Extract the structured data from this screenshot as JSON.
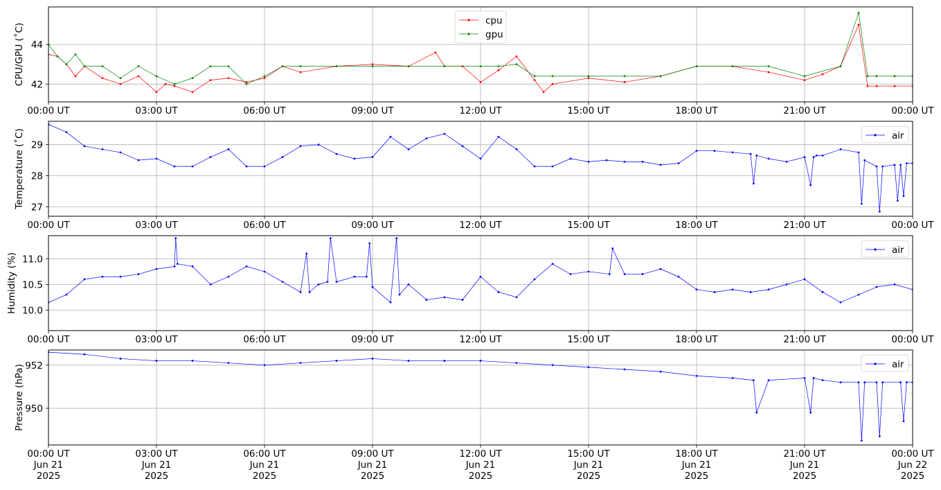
{
  "chart_data": [
    {
      "type": "line",
      "ylabel": "CPU/GPU (˚C)",
      "ylim": [
        41.1,
        45.9
      ],
      "yticks": [
        42,
        44
      ],
      "grid": true,
      "legend": "top-center",
      "x_domain": [
        "2025-06-21T00:00Z",
        "2025-06-22T00:00Z"
      ],
      "x_ticks": [
        "00:00 UT",
        "03:00 UT",
        "06:00 UT",
        "09:00 UT",
        "12:00 UT",
        "15:00 UT",
        "18:00 UT",
        "21:00 UT",
        "00:00 UT"
      ],
      "series": [
        {
          "name": "cpu",
          "color": "#ff0000",
          "x": [
            "2025-06-21T00:00Z",
            "2025-06-21T00:15Z",
            "2025-06-21T00:30Z",
            "2025-06-21T00:45Z",
            "2025-06-21T01:00Z",
            "2025-06-21T01:30Z",
            "2025-06-21T02:00Z",
            "2025-06-21T02:30Z",
            "2025-06-21T03:00Z",
            "2025-06-21T03:15Z",
            "2025-06-21T03:30Z",
            "2025-06-21T04:00Z",
            "2025-06-21T04:30Z",
            "2025-06-21T05:00Z",
            "2025-06-21T05:30Z",
            "2025-06-21T06:00Z",
            "2025-06-21T06:30Z",
            "2025-06-21T07:00Z",
            "2025-06-21T08:00Z",
            "2025-06-21T09:00Z",
            "2025-06-21T10:00Z",
            "2025-06-21T10:45Z",
            "2025-06-21T11:00Z",
            "2025-06-21T11:30Z",
            "2025-06-21T12:00Z",
            "2025-06-21T12:30Z",
            "2025-06-21T13:00Z",
            "2025-06-21T13:30Z",
            "2025-06-21T13:45Z",
            "2025-06-21T14:00Z",
            "2025-06-21T15:00Z",
            "2025-06-21T16:00Z",
            "2025-06-21T17:00Z",
            "2025-06-21T18:00Z",
            "2025-06-21T19:00Z",
            "2025-06-21T20:00Z",
            "2025-06-21T21:00Z",
            "2025-06-21T21:30Z",
            "2025-06-21T22:00Z",
            "2025-06-21T22:30Z",
            "2025-06-21T22:45Z",
            "2025-06-21T23:00Z",
            "2025-06-21T23:30Z",
            "2025-06-22T00:00Z"
          ],
          "y": [
            43.5,
            43.4,
            43.0,
            42.4,
            42.9,
            42.3,
            42.0,
            42.4,
            41.6,
            42.0,
            41.9,
            41.6,
            42.2,
            42.3,
            42.1,
            42.3,
            42.9,
            42.6,
            42.9,
            43.0,
            42.9,
            43.6,
            42.9,
            42.9,
            42.1,
            42.7,
            43.4,
            42.2,
            41.6,
            42.0,
            42.3,
            42.1,
            42.4,
            42.9,
            42.9,
            42.6,
            42.2,
            42.5,
            42.9,
            45.0,
            41.9,
            41.9,
            41.9,
            41.9
          ]
        },
        {
          "name": "gpu",
          "color": "#008000",
          "x": [
            "2025-06-21T00:00Z",
            "2025-06-21T00:15Z",
            "2025-06-21T00:30Z",
            "2025-06-21T00:45Z",
            "2025-06-21T01:00Z",
            "2025-06-21T01:30Z",
            "2025-06-21T02:00Z",
            "2025-06-21T02:30Z",
            "2025-06-21T03:00Z",
            "2025-06-21T03:30Z",
            "2025-06-21T04:00Z",
            "2025-06-21T04:30Z",
            "2025-06-21T05:00Z",
            "2025-06-21T05:30Z",
            "2025-06-21T06:00Z",
            "2025-06-21T06:30Z",
            "2025-06-21T07:00Z",
            "2025-06-21T08:00Z",
            "2025-06-21T09:00Z",
            "2025-06-21T10:00Z",
            "2025-06-21T11:00Z",
            "2025-06-21T12:00Z",
            "2025-06-21T12:30Z",
            "2025-06-21T13:00Z",
            "2025-06-21T13:30Z",
            "2025-06-21T14:00Z",
            "2025-06-21T15:00Z",
            "2025-06-21T16:00Z",
            "2025-06-21T17:00Z",
            "2025-06-21T18:00Z",
            "2025-06-21T19:00Z",
            "2025-06-21T20:00Z",
            "2025-06-21T21:00Z",
            "2025-06-21T22:00Z",
            "2025-06-21T22:30Z",
            "2025-06-21T22:45Z",
            "2025-06-21T23:00Z",
            "2025-06-21T23:30Z",
            "2025-06-22T00:00Z"
          ],
          "y": [
            44.0,
            43.4,
            43.0,
            43.5,
            42.9,
            42.9,
            42.3,
            42.9,
            42.4,
            42.0,
            42.3,
            42.9,
            42.9,
            42.0,
            42.4,
            42.9,
            42.9,
            42.9,
            42.9,
            42.9,
            42.9,
            42.9,
            42.9,
            43.0,
            42.4,
            42.4,
            42.4,
            42.4,
            42.4,
            42.9,
            42.9,
            42.9,
            42.4,
            42.9,
            45.6,
            42.4,
            42.4,
            42.4,
            42.4
          ]
        }
      ]
    },
    {
      "type": "line",
      "ylabel": "Temperature (˚C)",
      "ylim": [
        26.7,
        29.75
      ],
      "yticks": [
        27,
        28,
        29
      ],
      "grid": true,
      "legend": "top-right",
      "x_domain": [
        "2025-06-21T00:00Z",
        "2025-06-22T00:00Z"
      ],
      "x_ticks": [
        "00:00 UT",
        "03:00 UT",
        "06:00 UT",
        "09:00 UT",
        "12:00 UT",
        "15:00 UT",
        "18:00 UT",
        "21:00 UT",
        "00:00 UT"
      ],
      "series": [
        {
          "name": "air",
          "color": "#0000ff",
          "x": [
            "2025-06-21T00:00Z",
            "2025-06-21T00:30Z",
            "2025-06-21T01:00Z",
            "2025-06-21T01:30Z",
            "2025-06-21T02:00Z",
            "2025-06-21T02:30Z",
            "2025-06-21T03:00Z",
            "2025-06-21T03:30Z",
            "2025-06-21T04:00Z",
            "2025-06-21T04:30Z",
            "2025-06-21T05:00Z",
            "2025-06-21T05:30Z",
            "2025-06-21T06:00Z",
            "2025-06-21T06:30Z",
            "2025-06-21T07:00Z",
            "2025-06-21T07:30Z",
            "2025-06-21T08:00Z",
            "2025-06-21T08:30Z",
            "2025-06-21T09:00Z",
            "2025-06-21T09:30Z",
            "2025-06-21T10:00Z",
            "2025-06-21T10:30Z",
            "2025-06-21T11:00Z",
            "2025-06-21T11:30Z",
            "2025-06-21T12:00Z",
            "2025-06-21T12:30Z",
            "2025-06-21T13:00Z",
            "2025-06-21T13:30Z",
            "2025-06-21T14:00Z",
            "2025-06-21T14:30Z",
            "2025-06-21T15:00Z",
            "2025-06-21T15:30Z",
            "2025-06-21T16:00Z",
            "2025-06-21T16:30Z",
            "2025-06-21T17:00Z",
            "2025-06-21T17:30Z",
            "2025-06-21T18:00Z",
            "2025-06-21T18:30Z",
            "2025-06-21T19:00Z",
            "2025-06-21T19:30Z",
            "2025-06-21T19:35Z",
            "2025-06-21T19:40Z",
            "2025-06-21T20:00Z",
            "2025-06-21T20:30Z",
            "2025-06-21T21:00Z",
            "2025-06-21T21:10Z",
            "2025-06-21T21:15Z",
            "2025-06-21T21:20Z",
            "2025-06-21T21:30Z",
            "2025-06-21T22:00Z",
            "2025-06-21T22:30Z",
            "2025-06-21T22:35Z",
            "2025-06-21T22:40Z",
            "2025-06-21T23:00Z",
            "2025-06-21T23:05Z",
            "2025-06-21T23:10Z",
            "2025-06-21T23:30Z",
            "2025-06-21T23:35Z",
            "2025-06-21T23:40Z",
            "2025-06-21T23:45Z",
            "2025-06-21T23:50Z",
            "2025-06-22T00:00Z"
          ],
          "y": [
            29.65,
            29.4,
            28.95,
            28.85,
            28.75,
            28.5,
            28.55,
            28.3,
            28.3,
            28.6,
            28.85,
            28.3,
            28.3,
            28.6,
            28.95,
            29.0,
            28.7,
            28.55,
            28.6,
            29.25,
            28.85,
            29.2,
            29.35,
            28.95,
            28.55,
            29.25,
            28.85,
            28.3,
            28.3,
            28.55,
            28.45,
            28.5,
            28.45,
            28.45,
            28.35,
            28.4,
            28.8,
            28.8,
            28.75,
            28.7,
            27.75,
            28.65,
            28.55,
            28.45,
            28.6,
            27.7,
            28.6,
            28.65,
            28.65,
            28.85,
            28.75,
            27.1,
            28.5,
            28.3,
            26.85,
            28.3,
            28.35,
            27.2,
            28.35,
            27.35,
            28.4,
            28.4
          ]
        }
      ]
    },
    {
      "type": "line",
      "ylabel": "Humidity (%)",
      "ylim": [
        9.6,
        11.45
      ],
      "yticks": [
        10.0,
        10.5,
        11.0
      ],
      "grid": true,
      "legend": "top-right",
      "x_domain": [
        "2025-06-21T00:00Z",
        "2025-06-22T00:00Z"
      ],
      "x_ticks": [
        "00:00 UT",
        "03:00 UT",
        "06:00 UT",
        "09:00 UT",
        "12:00 UT",
        "15:00 UT",
        "18:00 UT",
        "21:00 UT",
        "00:00 UT"
      ],
      "series": [
        {
          "name": "air",
          "color": "#0000ff",
          "x": [
            "2025-06-21T00:00Z",
            "2025-06-21T00:30Z",
            "2025-06-21T01:00Z",
            "2025-06-21T01:30Z",
            "2025-06-21T02:00Z",
            "2025-06-21T02:30Z",
            "2025-06-21T03:00Z",
            "2025-06-21T03:30Z",
            "2025-06-21T03:32Z",
            "2025-06-21T03:35Z",
            "2025-06-21T04:00Z",
            "2025-06-21T04:30Z",
            "2025-06-21T05:00Z",
            "2025-06-21T05:30Z",
            "2025-06-21T06:00Z",
            "2025-06-21T06:30Z",
            "2025-06-21T07:00Z",
            "2025-06-21T07:10Z",
            "2025-06-21T07:15Z",
            "2025-06-21T07:30Z",
            "2025-06-21T07:45Z",
            "2025-06-21T07:50Z",
            "2025-06-21T08:00Z",
            "2025-06-21T08:30Z",
            "2025-06-21T08:50Z",
            "2025-06-21T08:55Z",
            "2025-06-21T09:00Z",
            "2025-06-21T09:30Z",
            "2025-06-21T09:40Z",
            "2025-06-21T09:45Z",
            "2025-06-21T10:00Z",
            "2025-06-21T10:30Z",
            "2025-06-21T11:00Z",
            "2025-06-21T11:30Z",
            "2025-06-21T12:00Z",
            "2025-06-21T12:30Z",
            "2025-06-21T13:00Z",
            "2025-06-21T13:30Z",
            "2025-06-21T14:00Z",
            "2025-06-21T14:30Z",
            "2025-06-21T15:00Z",
            "2025-06-21T15:35Z",
            "2025-06-21T15:40Z",
            "2025-06-21T16:00Z",
            "2025-06-21T16:30Z",
            "2025-06-21T17:00Z",
            "2025-06-21T17:30Z",
            "2025-06-21T18:00Z",
            "2025-06-21T18:30Z",
            "2025-06-21T19:00Z",
            "2025-06-21T19:30Z",
            "2025-06-21T20:00Z",
            "2025-06-21T20:30Z",
            "2025-06-21T21:00Z",
            "2025-06-21T21:30Z",
            "2025-06-21T22:00Z",
            "2025-06-21T22:30Z",
            "2025-06-21T23:00Z",
            "2025-06-21T23:30Z",
            "2025-06-22T00:00Z"
          ],
          "y": [
            10.15,
            10.3,
            10.6,
            10.65,
            10.65,
            10.7,
            10.8,
            10.85,
            11.4,
            10.9,
            10.85,
            10.5,
            10.65,
            10.85,
            10.75,
            10.55,
            10.35,
            11.1,
            10.35,
            10.5,
            10.55,
            11.4,
            10.55,
            10.65,
            10.65,
            11.3,
            10.45,
            10.15,
            11.4,
            10.3,
            10.5,
            10.2,
            10.25,
            10.2,
            10.65,
            10.35,
            10.25,
            10.6,
            10.9,
            10.7,
            10.75,
            10.7,
            11.2,
            10.7,
            10.7,
            10.8,
            10.65,
            10.4,
            10.35,
            10.4,
            10.35,
            10.4,
            10.5,
            10.6,
            10.35,
            10.15,
            10.3,
            10.45,
            10.5,
            10.4
          ]
        }
      ]
    },
    {
      "type": "line",
      "ylabel": "Pressure (hPa)",
      "ylim": [
        948.3,
        952.7
      ],
      "yticks": [
        950,
        952
      ],
      "grid": true,
      "legend": "top-right",
      "x_domain": [
        "2025-06-21T00:00Z",
        "2025-06-22T00:00Z"
      ],
      "x_ticks": [
        "00:00 UT\nJun 21\n2025",
        "03:00 UT\nJun 21\n2025",
        "06:00 UT\nJun 21\n2025",
        "09:00 UT\nJun 21\n2025",
        "12:00 UT\nJun 21\n2025",
        "15:00 UT\nJun 21\n2025",
        "18:00 UT\nJun 21\n2025",
        "21:00 UT\nJun 21\n2025",
        "00:00 UT\nJun 22\n2025"
      ],
      "series": [
        {
          "name": "air",
          "color": "#0000ff",
          "x": [
            "2025-06-21T00:00Z",
            "2025-06-21T01:00Z",
            "2025-06-21T02:00Z",
            "2025-06-21T03:00Z",
            "2025-06-21T04:00Z",
            "2025-06-21T05:00Z",
            "2025-06-21T06:00Z",
            "2025-06-21T07:00Z",
            "2025-06-21T08:00Z",
            "2025-06-21T09:00Z",
            "2025-06-21T10:00Z",
            "2025-06-21T11:00Z",
            "2025-06-21T12:00Z",
            "2025-06-21T13:00Z",
            "2025-06-21T14:00Z",
            "2025-06-21T15:00Z",
            "2025-06-21T16:00Z",
            "2025-06-21T17:00Z",
            "2025-06-21T18:00Z",
            "2025-06-21T19:00Z",
            "2025-06-21T19:35Z",
            "2025-06-21T19:40Z",
            "2025-06-21T20:00Z",
            "2025-06-21T21:00Z",
            "2025-06-21T21:10Z",
            "2025-06-21T21:15Z",
            "2025-06-21T21:30Z",
            "2025-06-21T22:00Z",
            "2025-06-21T22:30Z",
            "2025-06-21T22:35Z",
            "2025-06-21T22:40Z",
            "2025-06-21T23:00Z",
            "2025-06-21T23:05Z",
            "2025-06-21T23:10Z",
            "2025-06-21T23:40Z",
            "2025-06-21T23:45Z",
            "2025-06-21T23:50Z",
            "2025-06-22T00:00Z"
          ],
          "y": [
            952.6,
            952.5,
            952.3,
            952.2,
            952.2,
            952.1,
            952.0,
            952.1,
            952.2,
            952.3,
            952.2,
            952.2,
            952.2,
            952.1,
            952.0,
            951.9,
            951.8,
            951.7,
            951.5,
            951.4,
            951.3,
            949.8,
            951.3,
            951.4,
            949.8,
            951.4,
            951.3,
            951.2,
            951.2,
            948.5,
            951.2,
            951.2,
            948.7,
            951.2,
            951.2,
            949.4,
            951.2,
            951.2
          ]
        }
      ]
    }
  ]
}
